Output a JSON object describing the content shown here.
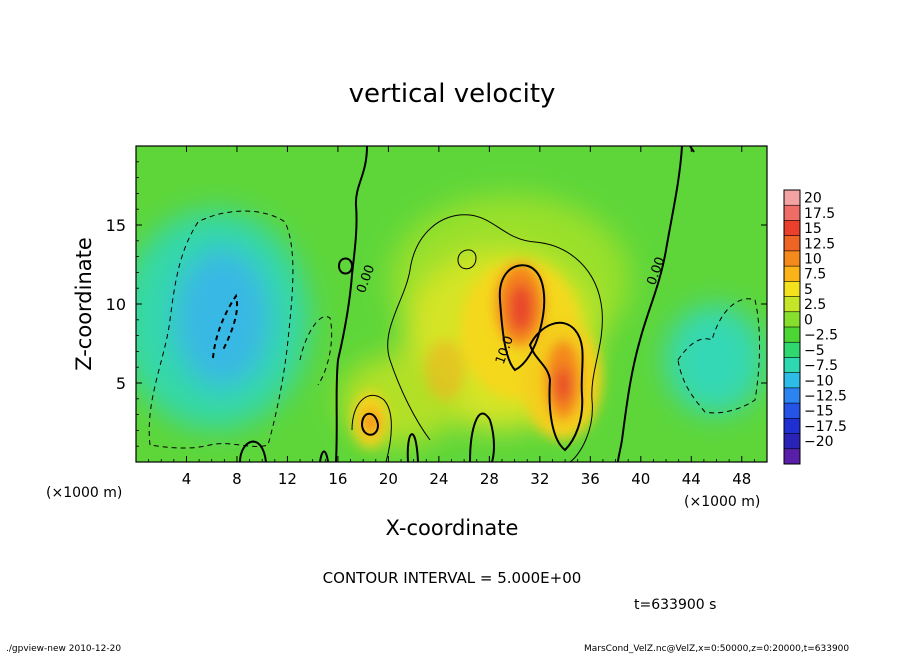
{
  "chart_data": {
    "type": "heatmap",
    "title": "vertical velocity",
    "xlabel": "X-coordinate",
    "ylabel": "Z-coordinate",
    "x_unit_label": "(×1000 m)",
    "y_unit_label": "(×1000 m)",
    "xlim": [
      0,
      50
    ],
    "ylim": [
      0,
      20
    ],
    "x_ticks": [
      4,
      8,
      12,
      16,
      20,
      24,
      28,
      32,
      36,
      40,
      44,
      48
    ],
    "y_ticks": [
      5,
      10,
      15
    ],
    "contour_interval_text": "CONTOUR INTERVAL = 5.000E+00",
    "contour_labels": [
      {
        "text": "0.00",
        "x": 18.5,
        "y": 11.5
      },
      {
        "text": "0.00",
        "x": 41.5,
        "y": 12.0
      },
      {
        "text": "10.0",
        "x": 29.5,
        "y": 7.0
      }
    ],
    "time_text": "t=633900 s",
    "colorbar": {
      "ticks": [
        "20",
        "17.5",
        "15",
        "12.5",
        "10",
        "7.5",
        "5",
        "2.5",
        "0",
        "−2.5",
        "−5",
        "−7.5",
        "−10",
        "−12.5",
        "−15",
        "−17.5",
        "−20"
      ],
      "colors": [
        "#f3a3a3",
        "#ee6e67",
        "#ea3f2a",
        "#ee6424",
        "#f58a1c",
        "#fbb318",
        "#f4e11e",
        "#c4e528",
        "#86df2d",
        "#4cd633",
        "#2fd76f",
        "#2ed8b0",
        "#2ebde8",
        "#2b84ef",
        "#2553e6",
        "#1f2fd2",
        "#2a22b6",
        "#5a1fa8"
      ]
    },
    "features": [
      {
        "kind": "updraft",
        "x": 30.5,
        "y": 9.5,
        "value": 15
      },
      {
        "kind": "updraft",
        "x": 33.5,
        "y": 5.5,
        "value": 13
      },
      {
        "kind": "updraft",
        "x": 18.5,
        "y": 2.5,
        "value": 8
      },
      {
        "kind": "downdraft",
        "x": 7.5,
        "y": 8.5,
        "value": -7.5
      }
    ]
  },
  "footer": {
    "left": "./gpview-new  2010-12-20",
    "right": "MarsCond_VelZ.nc@VelZ,x=0:50000,z=0:20000,t=633900"
  }
}
